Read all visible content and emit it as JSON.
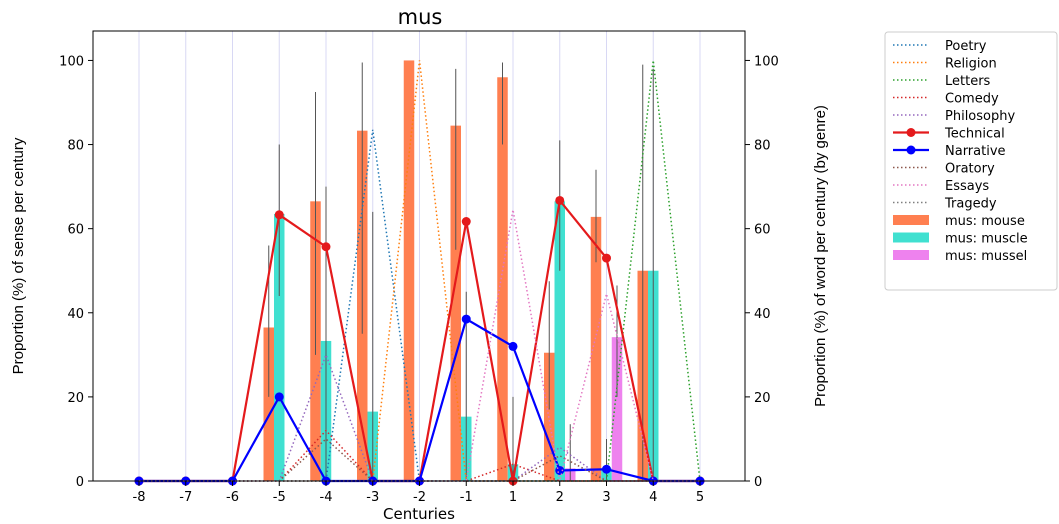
{
  "chart_data": {
    "type": "bar",
    "title": "mus",
    "xlabel": "Centuries",
    "ylabel_left": "Proportion (%) of sense per century",
    "ylabel_right": "Proportion (%) of word per century (by genre)",
    "x": [
      -8,
      -7,
      -6,
      -5,
      -4,
      -3,
      -2,
      -1,
      1,
      2,
      3,
      4,
      5
    ],
    "x_tick_labels": [
      "-8",
      "-7",
      "-6",
      "-5",
      "-4",
      "-3",
      "-2",
      "-1",
      "1",
      "2",
      "3",
      "4",
      "5"
    ],
    "ylim": [
      0,
      107
    ],
    "y_ticks": [
      0,
      20,
      40,
      60,
      80,
      100
    ],
    "y_tick_labels": [
      "0",
      "20",
      "40",
      "60",
      "80",
      "100"
    ],
    "legend_placement": "outside-right-top",
    "bar_series": [
      {
        "name": "mus: mouse",
        "color": "#ff7f50",
        "offset": -1,
        "values": [
          0,
          0,
          0,
          36.5,
          66.5,
          83.3,
          100,
          84.5,
          96,
          30.5,
          62.8,
          50,
          0
        ],
        "err_low": [
          0,
          0,
          0,
          20,
          30,
          35,
          100,
          55,
          80,
          17,
          52,
          0,
          0
        ],
        "err_high": [
          0,
          0,
          0,
          56,
          92.5,
          99.5,
          100,
          98,
          99.5,
          47.5,
          74,
          99,
          0
        ]
      },
      {
        "name": "mus: muscle",
        "color": "#40e0d0",
        "offset": 0,
        "values": [
          0,
          0,
          0,
          63.5,
          33.3,
          16.5,
          0,
          15.3,
          4,
          66.5,
          3,
          50,
          0
        ],
        "err_low": [
          0,
          0,
          0,
          44,
          0,
          0,
          0,
          0,
          0,
          50,
          0,
          0,
          0
        ],
        "err_high": [
          0,
          0,
          0,
          80,
          70,
          64,
          0,
          45,
          20,
          81,
          10,
          98,
          0
        ]
      },
      {
        "name": "mus: mussel",
        "color": "#ee82ee",
        "offset": 1,
        "values": [
          0,
          0,
          0,
          0,
          0,
          0,
          0,
          0,
          0,
          3,
          34.2,
          0,
          0
        ],
        "err_low": [
          0,
          0,
          0,
          0,
          0,
          0,
          0,
          0,
          0,
          0,
          20,
          0,
          0
        ],
        "err_high": [
          0,
          0,
          0,
          0,
          0,
          0,
          0,
          0,
          0,
          13.5,
          46.5,
          0,
          0
        ]
      }
    ],
    "line_series": [
      {
        "name": "Poetry",
        "color": "#1f77b4",
        "style": "dotted",
        "values": [
          0,
          0,
          0,
          0,
          0,
          83.5,
          0,
          0,
          0,
          0,
          0,
          0,
          0
        ]
      },
      {
        "name": "Religion",
        "color": "#ff7f0e",
        "style": "dotted",
        "values": [
          0,
          0,
          0,
          0,
          0,
          0,
          100,
          0,
          0,
          0,
          0,
          0,
          0
        ]
      },
      {
        "name": "Letters",
        "color": "#2ca02c",
        "style": "dotted",
        "values": [
          0,
          0,
          0,
          0,
          0,
          0,
          0,
          0,
          0,
          0,
          0,
          100,
          0
        ]
      },
      {
        "name": "Comedy",
        "color": "#d62728",
        "style": "dotted",
        "values": [
          0,
          0,
          0,
          0,
          12,
          0,
          0,
          0,
          4,
          0,
          0,
          0,
          0
        ]
      },
      {
        "name": "Philosophy",
        "color": "#9467bd",
        "style": "dotted",
        "values": [
          0,
          0,
          0,
          0,
          30,
          0,
          0,
          0,
          0,
          8,
          0,
          0,
          0
        ]
      },
      {
        "name": "Technical",
        "color": "#e41a1c",
        "style": "solid",
        "marker": true,
        "values": [
          0,
          0,
          0,
          63.3,
          55.7,
          0,
          0,
          61.7,
          0,
          66.7,
          53,
          0,
          0
        ]
      },
      {
        "name": "Narrative",
        "color": "#0000ff",
        "style": "solid",
        "marker": true,
        "values": [
          0,
          0,
          0,
          20,
          0,
          0,
          0,
          38.5,
          32,
          2.5,
          2.8,
          0,
          0
        ]
      },
      {
        "name": "Oratory",
        "color": "#8c564b",
        "style": "dotted",
        "values": [
          0,
          0,
          0,
          0,
          10,
          0,
          0,
          0,
          0,
          6,
          0,
          0,
          0
        ]
      },
      {
        "name": "Essays",
        "color": "#e377c2",
        "style": "dotted",
        "values": [
          0,
          0,
          0,
          0,
          0,
          0,
          0,
          0,
          64.5,
          0,
          44.5,
          0,
          0
        ]
      },
      {
        "name": "Tragedy",
        "color": "#7f7f7f",
        "style": "dotted",
        "values": [
          0,
          0,
          0,
          0,
          0,
          0,
          0,
          0,
          0,
          0,
          0,
          0,
          0
        ]
      }
    ],
    "legend": [
      {
        "label": "Poetry",
        "kind": "dotted",
        "color": "#1f77b4"
      },
      {
        "label": "Religion",
        "kind": "dotted",
        "color": "#ff7f0e"
      },
      {
        "label": "Letters",
        "kind": "dotted",
        "color": "#2ca02c"
      },
      {
        "label": "Comedy",
        "kind": "dotted",
        "color": "#d62728"
      },
      {
        "label": "Philosophy",
        "kind": "dotted",
        "color": "#9467bd"
      },
      {
        "label": "Technical",
        "kind": "solid-marker",
        "color": "#e41a1c"
      },
      {
        "label": "Narrative",
        "kind": "solid-marker",
        "color": "#0000ff"
      },
      {
        "label": "Oratory",
        "kind": "dotted",
        "color": "#8c564b"
      },
      {
        "label": "Essays",
        "kind": "dotted",
        "color": "#e377c2"
      },
      {
        "label": "Tragedy",
        "kind": "dotted",
        "color": "#7f7f7f"
      },
      {
        "label": "mus: mouse",
        "kind": "patch",
        "color": "#ff7f50"
      },
      {
        "label": "mus: muscle",
        "kind": "patch",
        "color": "#40e0d0"
      },
      {
        "label": "mus: mussel",
        "kind": "patch",
        "color": "#ee82ee"
      }
    ]
  }
}
